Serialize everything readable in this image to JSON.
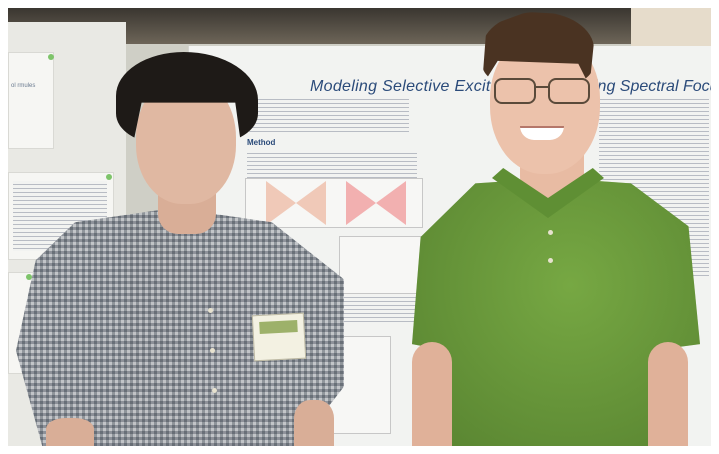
{
  "poster": {
    "title_left": "Modeling Selective Excitation o",
    "title_right": "sing Spectral Focusing",
    "section_method": "Method"
  },
  "left_board": {
    "snippet": "ol\nrmules"
  },
  "colors": {
    "poster_title": "#2b4b7a",
    "green_shirt": "#6b9c3c",
    "plaid_shirt": "#9aa0a6"
  }
}
